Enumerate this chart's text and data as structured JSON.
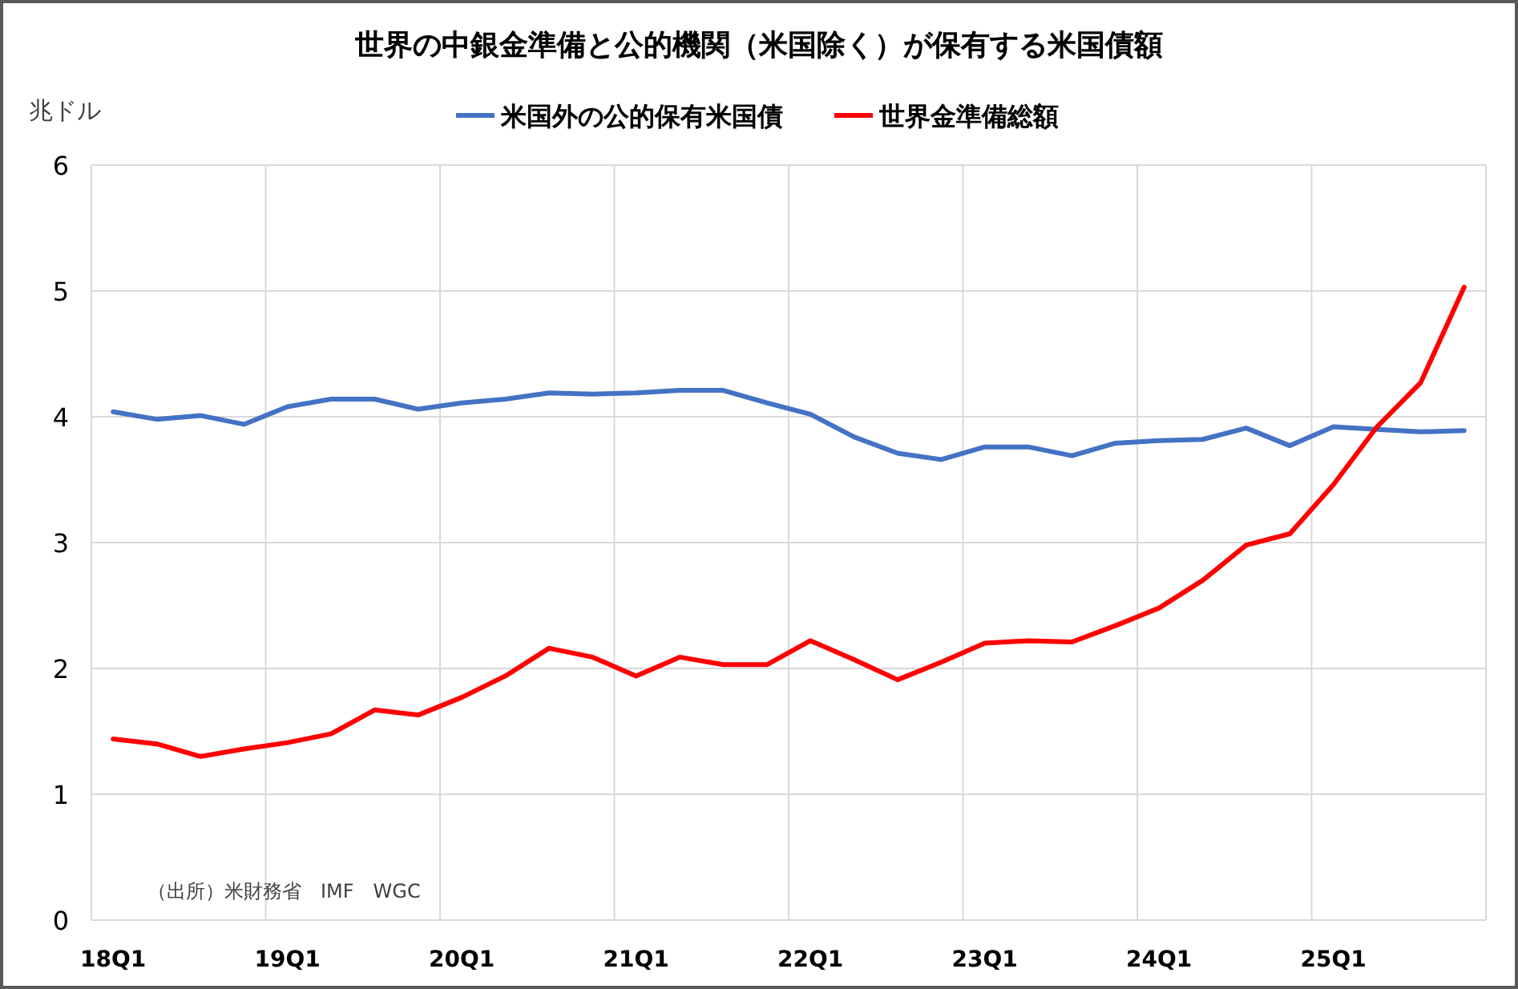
{
  "chart_data": {
    "type": "line",
    "title": "世界の中銀金準備と公的機関（米国除く）が保有する米国債額",
    "ylabel": "兆ドル",
    "annotations": [
      "（出所）米財務省　IMF　WGC"
    ],
    "categories": [
      "18Q1",
      null,
      null,
      null,
      "19Q1",
      null,
      null,
      null,
      "20Q1",
      null,
      null,
      null,
      "21Q1",
      null,
      null,
      null,
      "22Q1",
      null,
      null,
      null,
      "23Q1",
      null,
      null,
      null,
      "24Q1",
      null,
      null,
      null,
      "25Q1",
      null,
      null,
      null
    ],
    "series": [
      {
        "name": "米国外の公的保有米国債",
        "color": "#4472c4",
        "values": [
          4.04,
          3.98,
          4.01,
          3.94,
          4.08,
          4.14,
          4.14,
          4.06,
          4.11,
          4.14,
          4.19,
          4.18,
          4.19,
          4.21,
          4.21,
          4.11,
          4.02,
          3.84,
          3.71,
          3.66,
          3.76,
          3.76,
          3.69,
          3.79,
          3.81,
          3.82,
          3.91,
          3.77,
          3.92,
          3.9,
          3.88,
          3.89
        ]
      },
      {
        "name": "世界金準備総額",
        "color": "#ff0000",
        "values": [
          1.44,
          1.4,
          1.3,
          1.36,
          1.41,
          1.48,
          1.67,
          1.63,
          1.77,
          1.94,
          2.16,
          2.09,
          1.94,
          2.09,
          2.03,
          2.03,
          2.22,
          2.07,
          1.91,
          2.05,
          2.2,
          2.22,
          2.21,
          2.34,
          2.48,
          2.7,
          2.98,
          3.07,
          3.46,
          3.92,
          4.27,
          5.03
        ]
      }
    ],
    "ylim": [
      0,
      6
    ],
    "yticks": [
      0,
      1,
      2,
      3,
      4,
      5,
      6
    ],
    "grid": true,
    "legend": "top"
  }
}
